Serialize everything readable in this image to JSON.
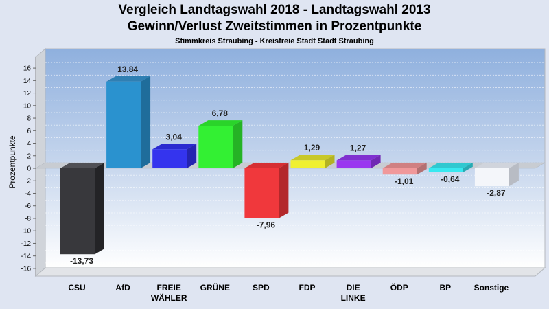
{
  "chart_data": {
    "type": "bar",
    "title": "Vergleich Landtagswahl 2018 - Landtagswahl 2013",
    "subtitle": "Gewinn/Verlust Zweitstimmen in Prozentpunkte",
    "subsubtitle": "Stimmkreis Straubing - Kreisfreie Stadt Stadt Straubing",
    "ylabel": "Prozentpunkte",
    "ylim": [
      -17,
      18
    ],
    "yticks": [
      16,
      14,
      12,
      10,
      8,
      6,
      4,
      2,
      0,
      -2,
      -4,
      -6,
      -8,
      -10,
      -12,
      -14,
      -16
    ],
    "grid": true,
    "categories": [
      {
        "label": [
          "CSU"
        ],
        "value": -13.73,
        "value_label": "-13,73",
        "color": "#38383c",
        "side": "#232326",
        "top": "#505055"
      },
      {
        "label": [
          "AfD"
        ],
        "value": 13.84,
        "value_label": "13,84",
        "color": "#2a92cf",
        "side": "#1f6d9b",
        "top": "#2f7fb3"
      },
      {
        "label": [
          "FREIE",
          "WÄHLER"
        ],
        "value": 3.04,
        "value_label": "3,04",
        "color": "#3434ee",
        "side": "#2424b0",
        "top": "#2a2ad0"
      },
      {
        "label": [
          "GRÜNE"
        ],
        "value": 6.78,
        "value_label": "6,78",
        "color": "#33f033",
        "side": "#25b325",
        "top": "#2ad42a"
      },
      {
        "label": [
          "SPD"
        ],
        "value": -7.96,
        "value_label": "-7,96",
        "color": "#f0383c",
        "side": "#b3282b",
        "top": "#d62f33"
      },
      {
        "label": [
          "FDP"
        ],
        "value": 1.29,
        "value_label": "1,29",
        "color": "#f0f030",
        "side": "#b3b322",
        "top": "#c8c828"
      },
      {
        "label": [
          "DIE",
          "LINKE"
        ],
        "value": 1.27,
        "value_label": "1,27",
        "color": "#9a38f0",
        "side": "#7028b3",
        "top": "#8030d0"
      },
      {
        "label": [
          "ÖDP"
        ],
        "value": -1.01,
        "value_label": "-1,01",
        "color": "#f0989a",
        "side": "#b37072",
        "top": "#d08082"
      },
      {
        "label": [
          "BP"
        ],
        "value": -0.64,
        "value_label": "-0,64",
        "color": "#38e8f0",
        "side": "#28aab3",
        "top": "#30c8d0"
      },
      {
        "label": [
          "Sonstige"
        ],
        "value": -2.87,
        "value_label": "-2,87",
        "color": "#f4f6fa",
        "side": "#b8bcc4",
        "top": "#d0d4dc"
      }
    ]
  }
}
